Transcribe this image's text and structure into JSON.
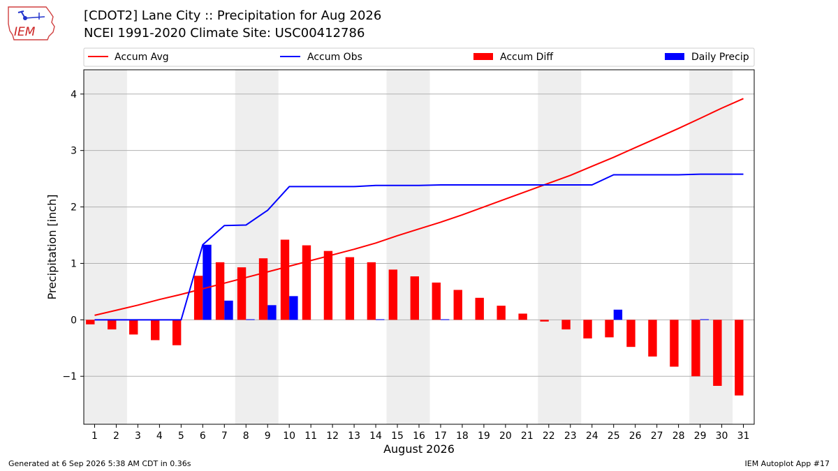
{
  "header": {
    "logo_text": "IEM",
    "title": "[CDOT2] Lane City :: Precipitation for Aug 2026",
    "subtitle": "NCEI 1991-2020 Climate Site: USC00412786"
  },
  "footer": {
    "generated": "Generated at 6 Sep 2026 5:38 AM CDT in 0.36s",
    "app": "IEM Autoplot App #17"
  },
  "colors": {
    "accum_avg": "#ff0000",
    "accum_obs": "#0000ff",
    "accum_diff": "#ff0000",
    "daily_precip": "#0000ff",
    "weekend_band": "#eeeeee",
    "grid": "#b0b0b0"
  },
  "chart_data": {
    "type": "bar",
    "xlabel": "August 2026",
    "ylabel": "Precipitation [inch]",
    "x": [
      1,
      2,
      3,
      4,
      5,
      6,
      7,
      8,
      9,
      10,
      11,
      12,
      13,
      14,
      15,
      16,
      17,
      18,
      19,
      20,
      21,
      22,
      23,
      24,
      25,
      26,
      27,
      28,
      29,
      30,
      31
    ],
    "xlim": [
      0.5,
      31.5
    ],
    "ylim": [
      -1.85,
      4.43
    ],
    "yticks": [
      -1,
      0,
      1,
      2,
      3,
      4
    ],
    "ytick_labels": [
      "−1",
      "0",
      "1",
      "2",
      "3",
      "4"
    ],
    "grid": "horizontal",
    "legend_position": "top",
    "weekend_bands": [
      [
        0.5,
        2.5
      ],
      [
        7.5,
        9.5
      ],
      [
        14.5,
        16.5
      ],
      [
        21.5,
        23.5
      ],
      [
        28.5,
        30.5
      ]
    ],
    "series": [
      {
        "name": "Accum Avg",
        "type": "line",
        "values": [
          0.08,
          0.17,
          0.26,
          0.36,
          0.45,
          0.55,
          0.65,
          0.75,
          0.85,
          0.95,
          1.05,
          1.15,
          1.25,
          1.36,
          1.49,
          1.61,
          1.73,
          1.86,
          2.0,
          2.14,
          2.28,
          2.42,
          2.56,
          2.72,
          2.88,
          3.05,
          3.22,
          3.39,
          3.57,
          3.75,
          3.92
        ]
      },
      {
        "name": "Accum Obs",
        "type": "line",
        "values": [
          0,
          0,
          0,
          0,
          0,
          1.33,
          1.67,
          1.68,
          1.94,
          2.36,
          2.36,
          2.36,
          2.36,
          2.38,
          2.38,
          2.38,
          2.39,
          2.39,
          2.39,
          2.39,
          2.39,
          2.39,
          2.39,
          2.39,
          2.57,
          2.57,
          2.57,
          2.57,
          2.58,
          2.58,
          2.58
        ]
      },
      {
        "name": "Accum Diff",
        "type": "bar",
        "values": [
          -0.08,
          -0.17,
          -0.26,
          -0.36,
          -0.45,
          0.78,
          1.02,
          0.93,
          1.09,
          1.42,
          1.32,
          1.22,
          1.11,
          1.02,
          0.89,
          0.77,
          0.66,
          0.53,
          0.39,
          0.25,
          0.11,
          -0.03,
          -0.17,
          -0.33,
          -0.31,
          -0.48,
          -0.65,
          -0.83,
          -1.0,
          -1.17,
          -1.34
        ]
      },
      {
        "name": "Daily Precip",
        "type": "bar",
        "values": [
          0,
          0,
          0,
          0,
          0,
          1.33,
          0.34,
          0.01,
          0.26,
          0.42,
          0,
          0,
          0,
          0.01,
          0,
          0,
          0.01,
          0,
          0,
          0,
          0,
          0,
          0,
          0,
          0.18,
          0,
          0,
          0,
          0.01,
          0,
          0
        ]
      }
    ]
  }
}
